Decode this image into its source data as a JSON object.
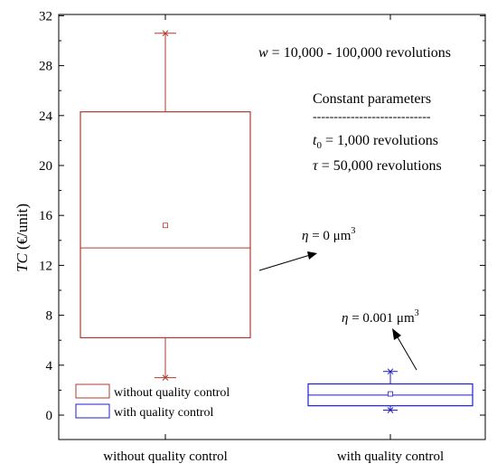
{
  "chart_data": {
    "type": "box",
    "ylabel_italic": "TC",
    "ylabel_rest": " (€/unit)",
    "ylim": [
      0,
      32
    ],
    "yticks": [
      "0",
      "4",
      "8",
      "12",
      "16",
      "20",
      "24",
      "28",
      "32"
    ],
    "categories": [
      "without quality control",
      "with quality control"
    ],
    "series": [
      {
        "name": "without quality control",
        "color": "#b03a2e",
        "whisker_low": 3.0,
        "q1": 6.2,
        "median": 13.4,
        "mean": 15.2,
        "q3": 24.3,
        "whisker_high": 30.6
      },
      {
        "name": "with quality control",
        "color": "#1f1fcc",
        "whisker_low": 0.4,
        "q1": 0.75,
        "median": 1.6,
        "mean": 1.7,
        "q3": 2.5,
        "whisker_high": 3.5
      }
    ],
    "annotations": {
      "range": {
        "italic": "w",
        "text": " = 10,000 - 100,000 revolutions"
      },
      "params_title": "Constant parameters",
      "params_rule": "----------------------------",
      "t0": {
        "italic": "t",
        "sub": "0",
        "text": " = 1,000 revolutions"
      },
      "tau": {
        "italic": "τ",
        "text": " = 50,000 revolutions"
      },
      "eta1": {
        "italic": "η",
        "text": " = 0 μm",
        "sup": "3"
      },
      "eta2": {
        "italic": "η",
        "text": " = 0.001 μm",
        "sup": "3"
      }
    }
  }
}
